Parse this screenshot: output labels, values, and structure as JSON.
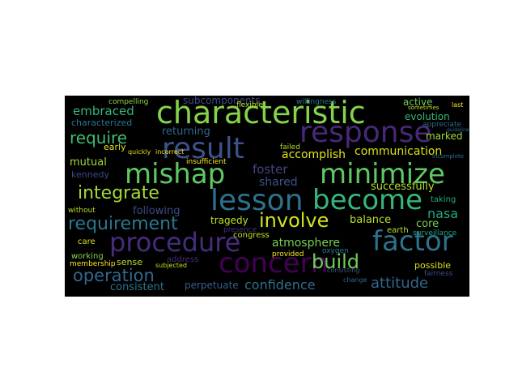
{
  "wordcloud": {
    "background": "#000000",
    "words": [
      {
        "text": "characteristic",
        "color": "#84d44b"
      },
      {
        "text": "response",
        "color": "#482878"
      },
      {
        "text": "result",
        "color": "#3b528b"
      },
      {
        "text": "mishap",
        "color": "#5ec962"
      },
      {
        "text": "minimize",
        "color": "#5ec962"
      },
      {
        "text": "lesson",
        "color": "#2c728e"
      },
      {
        "text": "become",
        "color": "#35b779"
      },
      {
        "text": "procedure",
        "color": "#472c7a"
      },
      {
        "text": "factor",
        "color": "#2c728e"
      },
      {
        "text": "concern",
        "color": "#440154"
      },
      {
        "text": "integrate",
        "color": "#a2da37"
      },
      {
        "text": "requirement",
        "color": "#2a788e"
      },
      {
        "text": "involve",
        "color": "#d0e11c"
      },
      {
        "text": "build",
        "color": "#6ece58"
      },
      {
        "text": "operation",
        "color": "#31688e"
      },
      {
        "text": "require",
        "color": "#3fbc73"
      },
      {
        "text": "attitude",
        "color": "#31688e"
      },
      {
        "text": "confidence",
        "color": "#2c728e"
      },
      {
        "text": "embraced",
        "color": "#35b779"
      },
      {
        "text": "characterized",
        "color": "#2a788e"
      },
      {
        "text": "communication",
        "color": "#d8e219"
      },
      {
        "text": "subcomponents",
        "color": "#3e4a89"
      },
      {
        "text": "returning",
        "color": "#31688e"
      },
      {
        "text": "foster",
        "color": "#414487"
      },
      {
        "text": "shared",
        "color": "#3b528b"
      },
      {
        "text": "accomplish",
        "color": "#e5e419"
      },
      {
        "text": "successfully",
        "color": "#b5de2b"
      },
      {
        "text": "nasa",
        "color": "#22a884"
      },
      {
        "text": "atmosphere",
        "color": "#7ad151"
      },
      {
        "text": "balance",
        "color": "#bddf26"
      },
      {
        "text": "core",
        "color": "#7ad151"
      },
      {
        "text": "mutual",
        "color": "#9fda3a"
      },
      {
        "text": "kennedy",
        "color": "#3e4989"
      },
      {
        "text": "following",
        "color": "#3e4a89"
      },
      {
        "text": "tragedy",
        "color": "#c2df23"
      },
      {
        "text": "consistent",
        "color": "#2c728e"
      },
      {
        "text": "perpetuate",
        "color": "#355f8d"
      },
      {
        "text": "evolution",
        "color": "#35b779"
      },
      {
        "text": "active",
        "color": "#6ece58"
      },
      {
        "text": "marked",
        "color": "#a5db36"
      },
      {
        "text": "congress",
        "color": "#c2df23"
      },
      {
        "text": "early",
        "color": "#e5e419"
      },
      {
        "text": "failed",
        "color": "#b5de2b"
      },
      {
        "text": "insufficient",
        "color": "#fde725"
      },
      {
        "text": "flexible",
        "color": "#bddf26"
      },
      {
        "text": "willingness",
        "color": "#2a788e"
      },
      {
        "text": "compelling",
        "color": "#8fd744"
      },
      {
        "text": "appreciate",
        "color": "#31688e"
      },
      {
        "text": "possible",
        "color": "#d8e219"
      },
      {
        "text": "earth",
        "color": "#b5de2b"
      },
      {
        "text": "taking",
        "color": "#22a884"
      },
      {
        "text": "surveillance",
        "color": "#22a884"
      },
      {
        "text": "fairness",
        "color": "#3e4a89"
      },
      {
        "text": "presence",
        "color": "#472d7b"
      },
      {
        "text": "provided",
        "color": "#fde725"
      },
      {
        "text": "oxygen",
        "color": "#2a788e"
      },
      {
        "text": "care",
        "color": "#d8e219"
      },
      {
        "text": "working",
        "color": "#84d44b"
      },
      {
        "text": "membership",
        "color": "#fde725"
      },
      {
        "text": "sense",
        "color": "#bddf26"
      },
      {
        "text": "address",
        "color": "#472c7a"
      },
      {
        "text": "subjected",
        "color": "#bddf26"
      },
      {
        "text": "without",
        "color": "#b5de2b"
      },
      {
        "text": "consisting",
        "color": "#3b528b"
      },
      {
        "text": "change",
        "color": "#31688e"
      },
      {
        "text": "incorrect",
        "color": "#fde725"
      },
      {
        "text": "sometimes",
        "color": "#c2df23"
      },
      {
        "text": "incomplete",
        "color": "#2c728e"
      },
      {
        "text": "quickly",
        "color": "#d8e219"
      },
      {
        "text": "last",
        "color": "#fde725"
      },
      {
        "text": "guidelines",
        "color": "#31688e"
      }
    ]
  }
}
